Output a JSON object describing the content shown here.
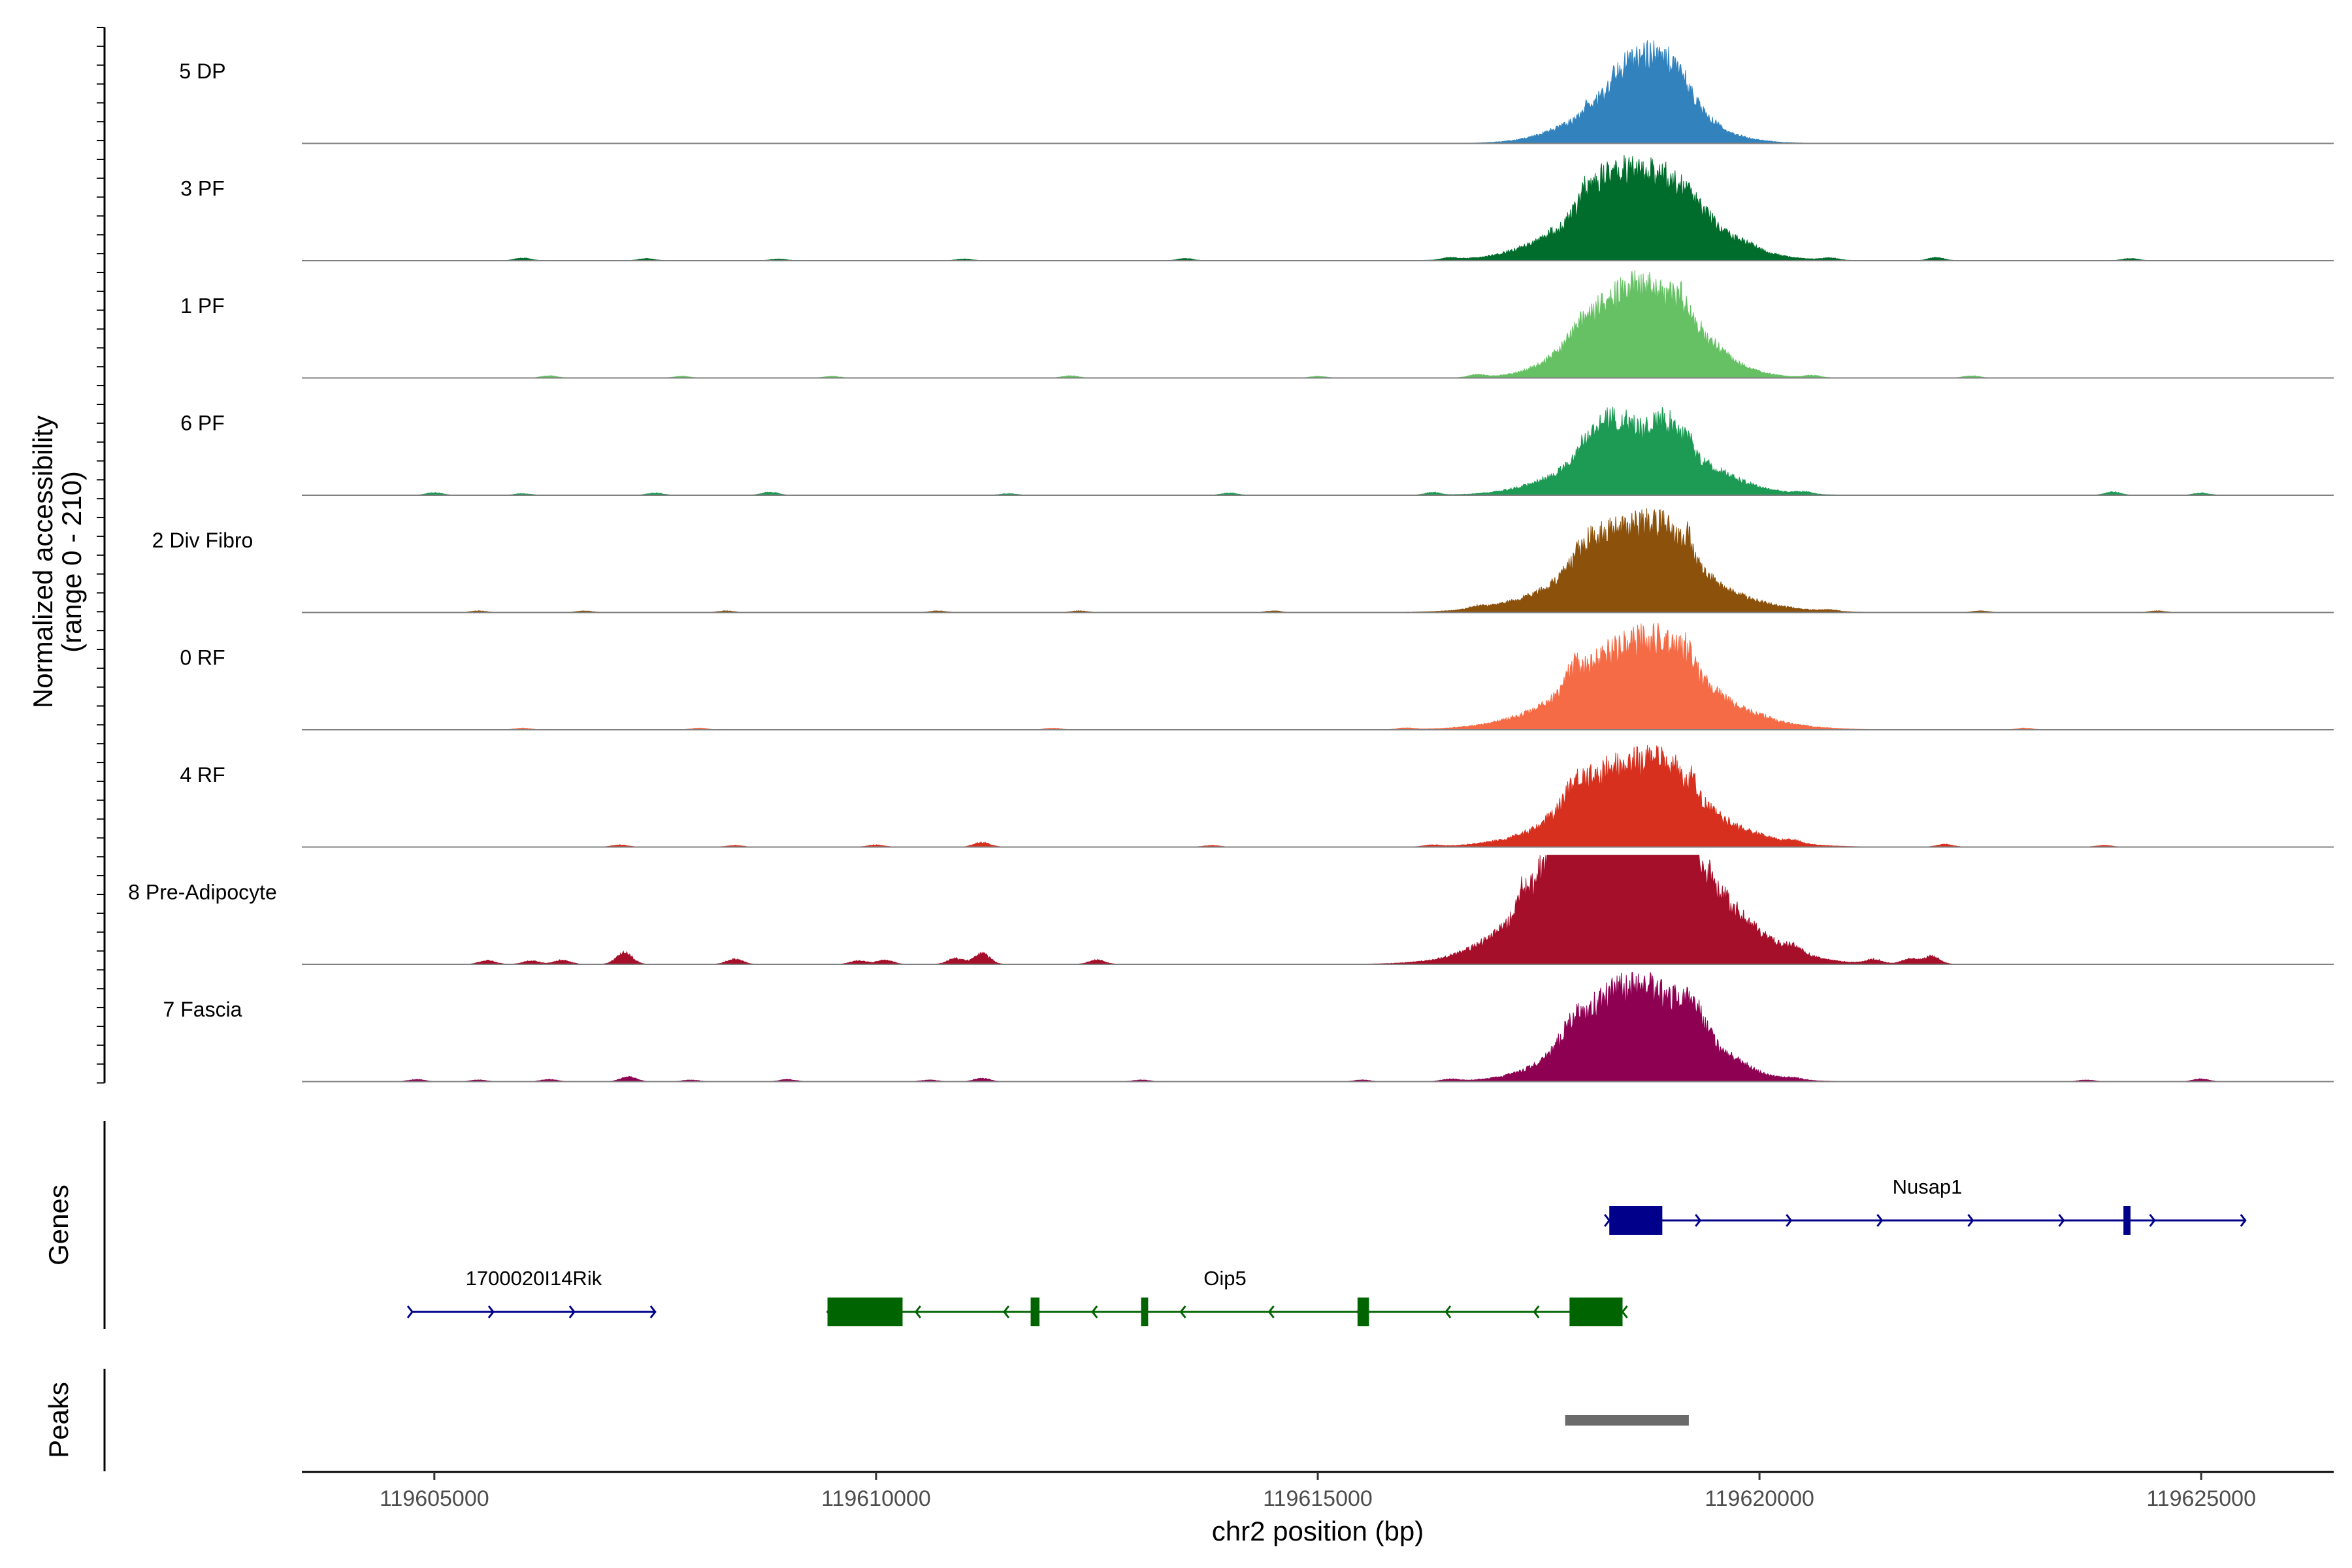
{
  "chart_data": {
    "type": "area",
    "title": "",
    "ylabel": "Normalized accessibility\n(range 0 - 210)",
    "xlabel": "chr2 position (bp)",
    "x_range": [
      119603500,
      119626500
    ],
    "y_range": [
      0,
      210
    ],
    "x_ticks": [
      119605000,
      119610000,
      119615000,
      119620000,
      119625000
    ],
    "x_tick_labels": [
      "119605000",
      "119610000",
      "119615000",
      "119620000",
      "119625000"
    ],
    "tracks": [
      {
        "name": "5 DP",
        "color": "#3182bd",
        "peaks": [
          [
            119618050,
            60,
            12
          ],
          [
            119618400,
            400,
            25
          ],
          [
            119618620,
            1420,
            95
          ],
          [
            119618770,
            650,
            35
          ],
          [
            119618920,
            700,
            45
          ],
          [
            119619100,
            300,
            15
          ]
        ],
        "bumps": []
      },
      {
        "name": "3 PF",
        "color": "#006d2c",
        "peaks": [
          [
            119617600,
            50,
            4
          ],
          [
            119618000,
            60,
            22
          ],
          [
            119618250,
            570,
            52
          ],
          [
            119618600,
            1750,
            120
          ],
          [
            119618950,
            860,
            55
          ],
          [
            119619180,
            50,
            12
          ]
        ],
        "bumps": [
          [
            119606000,
            5
          ],
          [
            119607400,
            4
          ],
          [
            119608900,
            3
          ],
          [
            119611000,
            3
          ],
          [
            119613500,
            4
          ],
          [
            119616500,
            4
          ],
          [
            119619900,
            5
          ],
          [
            119620800,
            4
          ],
          [
            119622000,
            6
          ],
          [
            119624200,
            4
          ]
        ]
      },
      {
        "name": "1 PF",
        "color": "#66c164",
        "peaks": [
          [
            119618000,
            280,
            16
          ],
          [
            119618300,
            960,
            45
          ],
          [
            119618650,
            1500,
            105
          ],
          [
            119618950,
            980,
            55
          ],
          [
            119619100,
            120,
            25
          ]
        ],
        "bumps": [
          [
            119606300,
            4
          ],
          [
            119607800,
            3
          ],
          [
            119609500,
            3
          ],
          [
            119612200,
            4
          ],
          [
            119615000,
            3
          ],
          [
            119616800,
            5
          ],
          [
            119620600,
            4
          ],
          [
            119622400,
            4
          ]
        ]
      },
      {
        "name": "6 PF",
        "color": "#1d9a54",
        "peaks": [
          [
            119618000,
            100,
            20
          ],
          [
            119618300,
            500,
            50
          ],
          [
            119618650,
            1650,
            110
          ],
          [
            119618950,
            350,
            45
          ],
          [
            119619200,
            90,
            30
          ]
        ],
        "bumps": [
          [
            119605000,
            5
          ],
          [
            119606000,
            3
          ],
          [
            119607500,
            4
          ],
          [
            119608800,
            6
          ],
          [
            119611500,
            3
          ],
          [
            119614000,
            4
          ],
          [
            119616300,
            5
          ],
          [
            119620500,
            4
          ],
          [
            119624000,
            6
          ],
          [
            119625000,
            4
          ]
        ]
      },
      {
        "name": "2 Div Fibro",
        "color": "#8c510a",
        "peaks": [
          [
            119618000,
            350,
            25
          ],
          [
            119618350,
            750,
            60
          ],
          [
            119618600,
            1950,
            95
          ],
          [
            119618950,
            620,
            70
          ],
          [
            119619200,
            70,
            30
          ]
        ],
        "bumps": [
          [
            119605500,
            3
          ],
          [
            119606700,
            3
          ],
          [
            119608300,
            3
          ],
          [
            119610700,
            3
          ],
          [
            119612300,
            3
          ],
          [
            119614500,
            3
          ],
          [
            119616800,
            4
          ],
          [
            119620800,
            3
          ],
          [
            119622500,
            3
          ],
          [
            119624500,
            3
          ]
        ]
      },
      {
        "name": "0 RF",
        "color": "#f56b46",
        "peaks": [
          [
            119617900,
            180,
            35
          ],
          [
            119618300,
            780,
            42
          ],
          [
            119618630,
            1950,
            108
          ],
          [
            119618950,
            760,
            65
          ],
          [
            119619180,
            110,
            20
          ]
        ],
        "bumps": [
          [
            119606000,
            3
          ],
          [
            119608000,
            3
          ],
          [
            119612000,
            3
          ],
          [
            119616000,
            3
          ],
          [
            119620000,
            3
          ],
          [
            119623000,
            3
          ]
        ]
      },
      {
        "name": "4 RF",
        "color": "#d7301f",
        "peaks": [
          [
            119617600,
            60,
            4
          ],
          [
            119617900,
            300,
            30
          ],
          [
            119618300,
            800,
            50
          ],
          [
            119618650,
            1850,
            110
          ],
          [
            119618950,
            600,
            55
          ],
          [
            119619250,
            60,
            40
          ]
        ],
        "bumps": [
          [
            119607100,
            4
          ],
          [
            119608400,
            3
          ],
          [
            119610000,
            4
          ],
          [
            119611200,
            9
          ],
          [
            119613800,
            3
          ],
          [
            119616300,
            3
          ],
          [
            119620400,
            4
          ],
          [
            119622100,
            5
          ],
          [
            119623900,
            3
          ]
        ]
      },
      {
        "name": "8 Pre-Adipocyte",
        "color": "#a50f2a",
        "peaks": [
          [
            119617300,
            110,
            40
          ],
          [
            119617650,
            340,
            60
          ],
          [
            119618250,
            1950,
            110
          ],
          [
            119618500,
            1800,
            145
          ],
          [
            119618950,
            2000,
            70
          ],
          [
            119619100,
            330,
            120
          ]
        ],
        "bumps": [
          [
            119605600,
            7
          ],
          [
            119606100,
            7
          ],
          [
            119606450,
            8
          ],
          [
            119607150,
            22
          ],
          [
            119608400,
            10
          ],
          [
            119609800,
            7
          ],
          [
            119610100,
            8
          ],
          [
            119610900,
            11
          ],
          [
            119611200,
            20
          ],
          [
            119612500,
            8
          ],
          [
            119620400,
            10
          ],
          [
            119621300,
            8
          ],
          [
            119621700,
            10
          ],
          [
            119621950,
            15
          ]
        ]
      },
      {
        "name": "7 Fascia",
        "color": "#8e0152",
        "peaks": [
          [
            119617900,
            320,
            30
          ],
          [
            119618300,
            900,
            45
          ],
          [
            119618620,
            1650,
            118
          ],
          [
            119618950,
            1000,
            50
          ],
          [
            119619250,
            260,
            40
          ]
        ],
        "bumps": [
          [
            119604800,
            4
          ],
          [
            119605500,
            3
          ],
          [
            119606300,
            4
          ],
          [
            119607200,
            9
          ],
          [
            119607900,
            3
          ],
          [
            119609000,
            4
          ],
          [
            119610600,
            3
          ],
          [
            119611200,
            6
          ],
          [
            119613000,
            3
          ],
          [
            119615500,
            3
          ],
          [
            119616500,
            4
          ],
          [
            119619800,
            4
          ],
          [
            119620400,
            3
          ],
          [
            119623700,
            3
          ],
          [
            119625000,
            5
          ]
        ]
      }
    ],
    "genes_title": "Genes",
    "genes": [
      {
        "name": "Nusap1",
        "strand": "+",
        "color": "#00008b",
        "row": 0,
        "start": 119618300,
        "end": 119625500,
        "exons": [
          [
            119618300,
            119618900
          ],
          [
            119624120,
            119624200
          ]
        ]
      },
      {
        "name": "1700020I14Rik",
        "strand": "+",
        "color": "#00008b",
        "row": 1,
        "start": 119604750,
        "end": 119607500,
        "exons": []
      },
      {
        "name": "Oip5",
        "strand": "-",
        "color": "#006400",
        "row": 1,
        "start": 119609450,
        "end": 119618450,
        "exons": [
          [
            119609450,
            119610300
          ],
          [
            119611750,
            119611850
          ],
          [
            119613000,
            119613080
          ],
          [
            119615450,
            119615580
          ],
          [
            119617850,
            119618450
          ]
        ]
      }
    ],
    "peaks_title": "Peaks",
    "peak_regions": [
      {
        "start": 119617800,
        "end": 119619200,
        "color": "#6b6b6b"
      }
    ]
  }
}
